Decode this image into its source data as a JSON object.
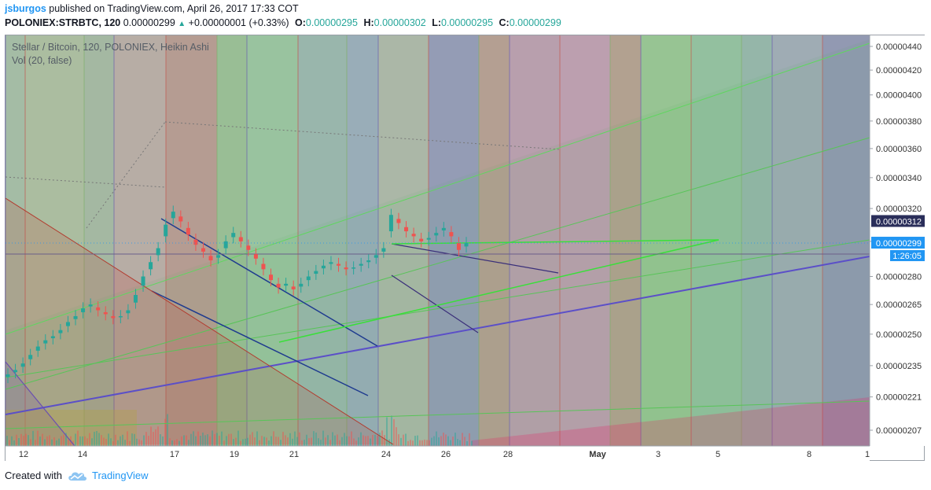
{
  "header": {
    "author": "jsburgos",
    "published_text": "published on TradingView.com, April 26, 2017 17:33 COT",
    "symbol": "POLONIEX:STRBTC, 120",
    "last_price": "0.00000299",
    "change": "+0.00000001 (+0.33%)",
    "open_label": "O:",
    "open": "0.00000295",
    "high_label": "H:",
    "high": "0.00000302",
    "low_label": "L:",
    "low": "0.00000295",
    "close_label": "C:",
    "close": "0.00000299"
  },
  "legend": {
    "title": "Stellar / Bitcoin, 120, POLONIEX, Heikin Ashi",
    "volume": "Vol (20, false)"
  },
  "price_badges": {
    "line_level": "0.00000312",
    "last": "0.00000299",
    "countdown": "1:26:05"
  },
  "footer": {
    "created_with": "Created with",
    "brand": "TradingView"
  },
  "colors": {
    "bull": "#26a69a",
    "bear": "#ef5350",
    "badge_dark": "#2a2e5a",
    "badge_blue": "#2196f3"
  },
  "chart_data": {
    "type": "candlestick",
    "title": "Stellar / Bitcoin, 120, POLONIEX, Heikin Ashi",
    "y_ticks": [
      "0.00000440",
      "0.00000420",
      "0.00000400",
      "0.00000380",
      "0.00000360",
      "0.00000340",
      "0.00000320",
      "0.00000300",
      "0.00000280",
      "0.00000265",
      "0.00000250",
      "0.00000235",
      "0.00000221",
      "0.00000207"
    ],
    "x_ticks": [
      "12",
      "14",
      "17",
      "19",
      "21",
      "24",
      "26",
      "28",
      "May",
      "3",
      "5",
      "8",
      "1"
    ],
    "price_scale": "log",
    "grid": false,
    "series_closes": [
      2.31e-06,
      2.33e-06,
      2.36e-06,
      2.4e-06,
      2.44e-06,
      2.47e-06,
      2.49e-06,
      2.52e-06,
      2.56e-06,
      2.59e-06,
      2.63e-06,
      2.65e-06,
      2.62e-06,
      2.6e-06,
      2.58e-06,
      2.59e-06,
      2.62e-06,
      2.7e-06,
      2.8e-06,
      2.88e-06,
      2.96e-06,
      3.1e-06,
      3.18e-06,
      3.12e-06,
      3.04e-06,
      2.98e-06,
      2.94e-06,
      2.89e-06,
      2.92e-06,
      3e-06,
      3.05e-06,
      3e-06,
      2.95e-06,
      2.9e-06,
      2.84e-06,
      2.78e-06,
      2.74e-06,
      2.76e-06,
      2.73e-06,
      2.76e-06,
      2.8e-06,
      2.83e-06,
      2.86e-06,
      2.88e-06,
      2.86e-06,
      2.84e-06,
      2.85e-06,
      2.87e-06,
      2.89e-06,
      2.92e-06,
      2.96e-06,
      3.16e-06,
      3.11e-06,
      3.06e-06,
      3.03e-06,
      3e-06,
      3.02e-06,
      3.05e-06,
      3.08e-06,
      3.03e-06,
      2.95e-06,
      2.99e-06
    ],
    "last_close": 2.99e-06
  }
}
